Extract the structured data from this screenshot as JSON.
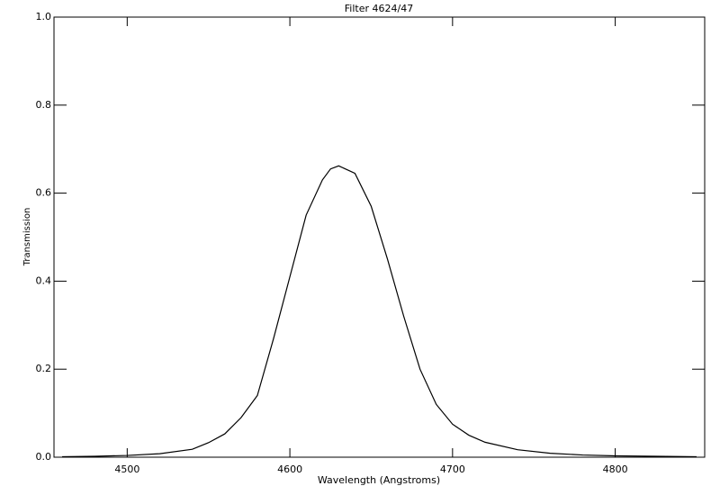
{
  "chart_data": {
    "type": "line",
    "title": "Filter 4624/47",
    "x_label": "Wavelength (Angstroms)",
    "y_label": "Transmission",
    "xlim": [
      4455,
      4855
    ],
    "ylim": [
      0,
      1
    ],
    "xticks": [
      4500,
      4600,
      4700,
      4800
    ],
    "yticks": [
      {
        "value": 0,
        "label": "0.0"
      },
      0.2,
      0.4,
      0.6,
      0.8,
      {
        "value": 1,
        "label": "1.0"
      }
    ],
    "x": [
      4460,
      4480,
      4500,
      4520,
      4540,
      4550,
      4560,
      4570,
      4580,
      4590,
      4600,
      4610,
      4620,
      4625,
      4630,
      4640,
      4650,
      4660,
      4670,
      4680,
      4690,
      4700,
      4710,
      4720,
      4740,
      4760,
      4780,
      4800,
      4850
    ],
    "series": [
      {
        "name": "Transmission",
        "color": "#000000",
        "values": [
          0.001,
          0.002,
          0.004,
          0.008,
          0.018,
          0.033,
          0.053,
          0.09,
          0.14,
          0.27,
          0.41,
          0.55,
          0.63,
          0.655,
          0.662,
          0.645,
          0.57,
          0.45,
          0.32,
          0.2,
          0.12,
          0.075,
          0.05,
          0.034,
          0.017,
          0.009,
          0.005,
          0.003,
          0.001
        ]
      }
    ]
  }
}
